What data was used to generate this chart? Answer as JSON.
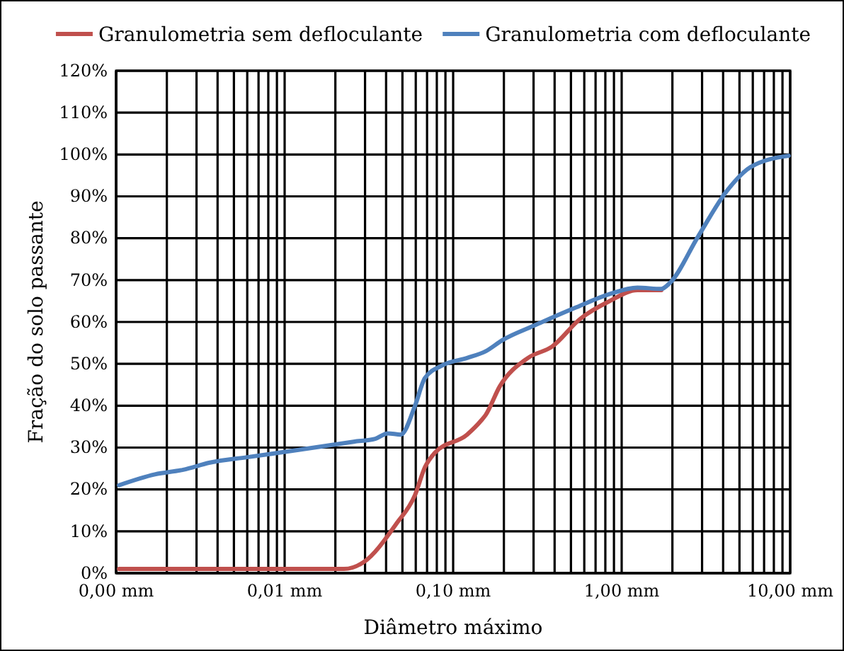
{
  "chart_data": {
    "type": "line",
    "xlabel": "Diâmetro máximo",
    "ylabel": "Fração  do solo passante",
    "log": "x",
    "grid": true,
    "legend": "top",
    "line_style": "solid",
    "marker": "none",
    "xlim": [
      0.001,
      10
    ],
    "ylim": [
      0,
      120
    ],
    "xticks": [
      {
        "value": 0.001,
        "label": "0,00 mm"
      },
      {
        "value": 0.002,
        "label": null
      },
      {
        "value": 0.003,
        "label": null
      },
      {
        "value": 0.004,
        "label": null
      },
      {
        "value": 0.005,
        "label": null
      },
      {
        "value": 0.006,
        "label": null
      },
      {
        "value": 0.007,
        "label": null
      },
      {
        "value": 0.008,
        "label": null
      },
      {
        "value": 0.009,
        "label": null
      },
      {
        "value": 0.01,
        "label": "0,01 mm"
      },
      {
        "value": 0.02,
        "label": null
      },
      {
        "value": 0.03,
        "label": null
      },
      {
        "value": 0.04,
        "label": null
      },
      {
        "value": 0.05,
        "label": null
      },
      {
        "value": 0.06,
        "label": null
      },
      {
        "value": 0.07,
        "label": null
      },
      {
        "value": 0.08,
        "label": null
      },
      {
        "value": 0.09,
        "label": null
      },
      {
        "value": 0.1,
        "label": "0,10 mm"
      },
      {
        "value": 0.2,
        "label": null
      },
      {
        "value": 0.3,
        "label": null
      },
      {
        "value": 0.4,
        "label": null
      },
      {
        "value": 0.5,
        "label": null
      },
      {
        "value": 0.6,
        "label": null
      },
      {
        "value": 0.7,
        "label": null
      },
      {
        "value": 0.8,
        "label": null
      },
      {
        "value": 0.9,
        "label": null
      },
      {
        "value": 1,
        "label": "1,00 mm"
      },
      {
        "value": 2,
        "label": null
      },
      {
        "value": 3,
        "label": null
      },
      {
        "value": 4,
        "label": null
      },
      {
        "value": 5,
        "label": null
      },
      {
        "value": 6,
        "label": null
      },
      {
        "value": 7,
        "label": null
      },
      {
        "value": 8,
        "label": null
      },
      {
        "value": 9,
        "label": null
      },
      {
        "value": 10,
        "label": "10,00 mm"
      }
    ],
    "yticks": [
      {
        "value": 0,
        "label": "0%"
      },
      {
        "value": 10,
        "label": "10%"
      },
      {
        "value": 20,
        "label": "20%"
      },
      {
        "value": 30,
        "label": "30%"
      },
      {
        "value": 40,
        "label": "40%"
      },
      {
        "value": 50,
        "label": "50%"
      },
      {
        "value": 60,
        "label": "60%"
      },
      {
        "value": 70,
        "label": "70%"
      },
      {
        "value": 80,
        "label": "80%"
      },
      {
        "value": 90,
        "label": "90%"
      },
      {
        "value": 100,
        "label": "100%"
      },
      {
        "value": 110,
        "label": "110%"
      },
      {
        "value": 120,
        "label": "120%"
      }
    ],
    "series": [
      {
        "name": "Granulometria sem defloculante",
        "color": "#c0504d",
        "x": [
          0.00104,
          0.005,
          0.0225,
          0.0296,
          0.046,
          0.0593,
          0.068,
          0.0776,
          0.121,
          0.147,
          0.156,
          0.189,
          0.278,
          0.386,
          0.57,
          0.84,
          1.24,
          1.72
        ],
        "values": [
          1,
          1,
          1,
          2.7,
          11.8,
          18.6,
          25.3,
          28.7,
          33.1,
          36.5,
          37.8,
          44.6,
          51.4,
          54.1,
          60.8,
          64.9,
          67.6,
          67.6
        ]
      },
      {
        "name": "Granulometria com defloculante",
        "color": "#4f81bd",
        "x": [
          0.00104,
          0.0017,
          0.0025,
          0.0036,
          0.006,
          0.0119,
          0.0257,
          0.0345,
          0.041,
          0.0489,
          0.0593,
          0.068,
          0.087,
          0.121,
          0.156,
          0.197,
          0.301,
          0.538,
          0.84,
          1.24,
          1.72,
          1.93,
          2.84,
          4.19,
          5.82,
          9.8
        ],
        "values": [
          21,
          23.6,
          24.7,
          26.4,
          27.7,
          29.4,
          31.4,
          32.1,
          33.4,
          33.1,
          39.9,
          46.6,
          49.7,
          51.4,
          53,
          55.7,
          59.1,
          63.5,
          66.6,
          68.2,
          67.9,
          69.3,
          80.4,
          91.2,
          97,
          99.7
        ]
      }
    ]
  }
}
